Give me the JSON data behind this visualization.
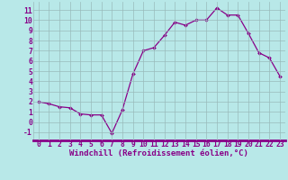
{
  "x": [
    0,
    1,
    2,
    3,
    4,
    5,
    6,
    7,
    8,
    9,
    10,
    11,
    12,
    13,
    14,
    15,
    16,
    17,
    18,
    19,
    20,
    21,
    22,
    23
  ],
  "y": [
    2.0,
    1.8,
    1.5,
    1.4,
    0.8,
    0.7,
    0.7,
    -1.1,
    1.2,
    4.7,
    7.0,
    7.3,
    8.5,
    9.8,
    9.5,
    10.0,
    10.0,
    11.2,
    10.5,
    10.5,
    8.7,
    6.8,
    6.3,
    4.5
  ],
  "line_color": "#880088",
  "marker": "D",
  "marker_size": 2.0,
  "bg_color": "#b8e8e8",
  "grid_color": "#99bbbb",
  "xlabel": "Windchill (Refroidissement éolien,°C)",
  "ylim": [
    -1.8,
    11.8
  ],
  "xlim": [
    -0.5,
    23.5
  ],
  "yticks": [
    -1,
    0,
    1,
    2,
    3,
    4,
    5,
    6,
    7,
    8,
    9,
    10,
    11
  ],
  "xticks": [
    0,
    1,
    2,
    3,
    4,
    5,
    6,
    7,
    8,
    9,
    10,
    11,
    12,
    13,
    14,
    15,
    16,
    17,
    18,
    19,
    20,
    21,
    22,
    23
  ],
  "xlabel_fontsize": 6.5,
  "tick_fontsize": 5.8,
  "line_width": 0.9,
  "bottom_bar_color": "#880088"
}
